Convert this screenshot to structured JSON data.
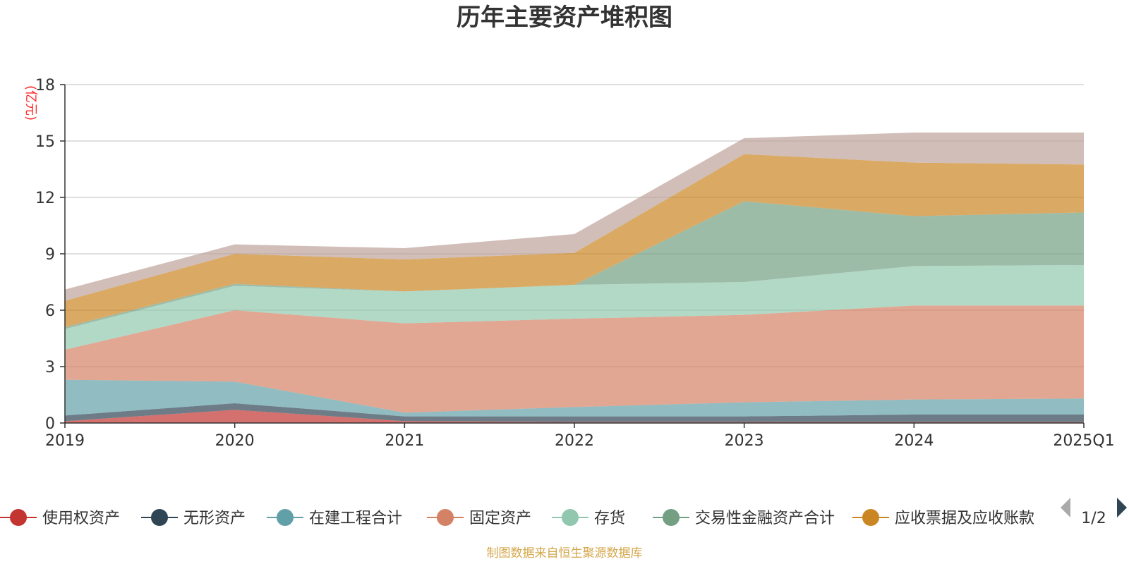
{
  "chart_data": {
    "type": "area",
    "title": "历年主要资产堆积图",
    "ylabel": "(亿元)",
    "ylim": [
      0,
      18
    ],
    "yticks": [
      "0",
      "3",
      "6",
      "9",
      "12",
      "15",
      "18"
    ],
    "categories": [
      "2019",
      "2020",
      "2021",
      "2022",
      "2023",
      "2024",
      "2025Q1"
    ],
    "grid": true,
    "stacked": true,
    "series": [
      {
        "name": "使用权资产",
        "color": "#c23531",
        "values": [
          0.1,
          0.7,
          0.1,
          0.05,
          0.05,
          0.05,
          0.05
        ]
      },
      {
        "name": "无形资产",
        "color": "#2f4554",
        "values": [
          0.3,
          0.35,
          0.25,
          0.3,
          0.3,
          0.4,
          0.4
        ]
      },
      {
        "name": "在建工程合计",
        "color": "#61a0a8",
        "values": [
          1.9,
          1.15,
          0.2,
          0.5,
          0.75,
          0.8,
          0.85
        ]
      },
      {
        "name": "固定资产",
        "color": "#d48265",
        "values": [
          1.6,
          3.8,
          4.75,
          4.7,
          4.65,
          5.0,
          4.95
        ]
      },
      {
        "name": "存货",
        "color": "#91c7ae",
        "values": [
          1.1,
          1.3,
          1.7,
          1.8,
          1.75,
          2.1,
          2.15
        ]
      },
      {
        "name": "交易性金融资产合计",
        "color": "#749f83",
        "values": [
          0.1,
          0.1,
          0.0,
          0.0,
          4.3,
          2.65,
          2.8
        ]
      },
      {
        "name": "应收票据及应收账款",
        "color": "#ca8622",
        "values": [
          1.4,
          1.6,
          1.7,
          1.7,
          2.5,
          2.85,
          2.55
        ]
      },
      {
        "name": "",
        "color": "#bda29a",
        "values": [
          0.6,
          0.5,
          0.6,
          1.0,
          0.85,
          1.6,
          1.7
        ]
      }
    ],
    "legend": {
      "position": "bottom",
      "page": "1/2"
    },
    "source": "制图数据来自恒生聚源数据库"
  }
}
